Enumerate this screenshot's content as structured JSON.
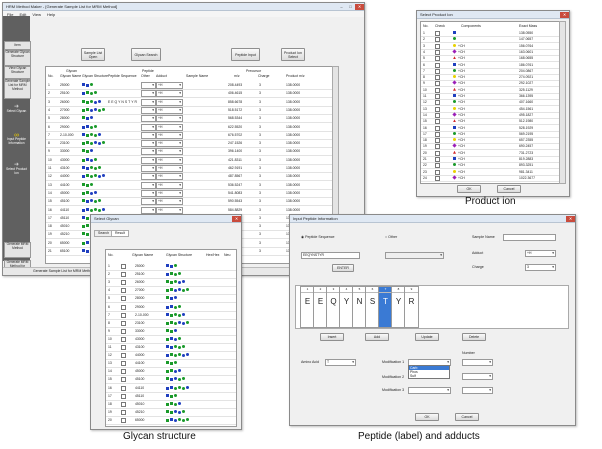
{
  "main_window": {
    "title": "HRM Method Maker - [Generate Sample List for MRM Method]",
    "menu": [
      "File",
      "Edit",
      "View",
      "Help"
    ],
    "sidebar": [
      {
        "label": "Item"
      },
      {
        "label": "Generate Glycan Structure"
      },
      {
        "label": "View Glycan Structure"
      },
      {
        "label": "Generate Sample List for MRM Method"
      },
      {
        "label": "Select Glycan"
      },
      {
        "label": "Input Peptide Information"
      },
      {
        "label": "Select Product Ion"
      },
      {
        "label": "Generate MRM Method"
      },
      {
        "label": "Generate MRM Method for Dresin"
      }
    ],
    "toolbar": [
      {
        "label": "Sample List Open"
      },
      {
        "label": "Glycan Search"
      },
      {
        "label": "Peptide Input"
      },
      {
        "label": "Product Ion Select"
      }
    ],
    "group_headers": {
      "glycan": "Glycan",
      "peptide": "Peptide",
      "precursor": "Precursor"
    },
    "columns": [
      "No.",
      "Glycan Name",
      "Glycan Structure",
      "Peptide Sequence",
      "Other",
      "Adduct",
      "Sample Name",
      "m/z",
      "Charge",
      "Product m/z"
    ],
    "rows": [
      {
        "no": "1",
        "glycan": "25000",
        "seq": "",
        "adduct": "+H",
        "mz": "208.4493",
        "charge": "3",
        "product": "138.0000"
      },
      {
        "no": "2",
        "glycan": "25100",
        "seq": "",
        "adduct": "+H",
        "mz": "406.4615",
        "charge": "3",
        "product": "138.0000"
      },
      {
        "no": "3",
        "glycan": "26000",
        "seq": "EEQYNSTYR",
        "adduct": "+H",
        "mz": "858.6678",
        "charge": "3",
        "product": "138.0000"
      },
      {
        "no": "4",
        "glycan": "27000",
        "seq": "",
        "adduct": "+H",
        "mz": "518.5172",
        "charge": "3",
        "product": "138.0000"
      },
      {
        "no": "5",
        "glycan": "28000",
        "seq": "",
        "adduct": "+H",
        "mz": "568.5344",
        "charge": "3",
        "product": "138.0000"
      },
      {
        "no": "6",
        "glycan": "29000",
        "seq": "",
        "adduct": "+H",
        "mz": "622.5520",
        "charge": "3",
        "product": "138.0000"
      },
      {
        "no": "7",
        "glycan": "2-10-000",
        "seq": "",
        "adduct": "+H",
        "mz": "676.5702",
        "charge": "3",
        "product": "138.0000"
      },
      {
        "no": "8",
        "glycan": "23100",
        "seq": "",
        "adduct": "+H",
        "mz": "247.1526",
        "charge": "3",
        "product": "138.0000"
      },
      {
        "no": "9",
        "glycan": "33000",
        "seq": "",
        "adduct": "+H",
        "mz": "396.1400",
        "charge": "3",
        "product": "138.0000"
      },
      {
        "no": "10",
        "glycan": "43000",
        "seq": "",
        "adduct": "+H",
        "mz": "421.8311",
        "charge": "3",
        "product": "138.0000"
      },
      {
        "no": "11",
        "glycan": "43100",
        "seq": "",
        "adduct": "+H",
        "mz": "462.9191",
        "charge": "3",
        "product": "138.0000"
      },
      {
        "no": "12",
        "glycan": "44000",
        "seq": "",
        "adduct": "+H",
        "mz": "487.8567",
        "charge": "3",
        "product": "138.0000"
      },
      {
        "no": "13",
        "glycan": "44100",
        "seq": "",
        "adduct": "+H",
        "mz": "536.5247",
        "charge": "3",
        "product": "138.0000"
      },
      {
        "no": "14",
        "glycan": "45000",
        "seq": "",
        "adduct": "+H",
        "mz": "541.8083",
        "charge": "3",
        "product": "138.0000"
      },
      {
        "no": "15",
        "glycan": "45100",
        "seq": "",
        "adduct": "+H",
        "mz": "590.5543",
        "charge": "3",
        "product": "138.0000"
      },
      {
        "no": "16",
        "glycan": "44110",
        "seq": "",
        "adduct": "+H",
        "mz": "584.8829",
        "charge": "3",
        "product": "138.0000"
      },
      {
        "no": "17",
        "glycan": "45110",
        "seq": "",
        "adduct": "+H",
        "mz": "632.9069",
        "charge": "3",
        "product": "138.0000"
      },
      {
        "no": "18",
        "glycan": "45010",
        "seq": "",
        "adduct": "+H",
        "mz": "638.6055",
        "charge": "3",
        "product": "138.0000"
      },
      {
        "no": "19",
        "glycan": "45210",
        "seq": "",
        "adduct": "+H",
        "mz": "687.3664",
        "charge": "3",
        "product": "138.0000"
      },
      {
        "no": "20",
        "glycan": "65000",
        "seq": "",
        "adduct": "+H",
        "mz": "735.4314",
        "charge": "3",
        "product": "138.0000"
      },
      {
        "no": "21",
        "glycan": "65100",
        "seq": "",
        "adduct": "+H",
        "mz": "784.6176",
        "charge": "3",
        "product": "138.0000"
      }
    ],
    "status": "Generate Sample List for MRM Method"
  },
  "product_window": {
    "title": "Select Product Ion",
    "columns": [
      "No.",
      "Check",
      "Components",
      "Exact Mass"
    ],
    "rows": [
      {
        "no": "1",
        "comp": "",
        "mass": "138.0550"
      },
      {
        "no": "2",
        "comp": "",
        "mass": "147.0657"
      },
      {
        "no": "3",
        "comp": "+CH",
        "mass": "156.0764"
      },
      {
        "no": "4",
        "comp": "+CH",
        "mass": "163.0601"
      },
      {
        "no": "5",
        "comp": "+CH",
        "mass": "168.0655"
      },
      {
        "no": "6",
        "comp": "+CH",
        "mass": "186.0761"
      },
      {
        "no": "7",
        "comp": "+CH",
        "mass": "204.0867"
      },
      {
        "no": "8",
        "comp": "+CH",
        "mass": "274.0921"
      },
      {
        "no": "9",
        "comp": "+CH",
        "mass": "292.1027"
      },
      {
        "no": "10",
        "comp": "+CH",
        "mass": "325.1129"
      },
      {
        "no": "11",
        "comp": "+CH",
        "mass": "366.1395"
      },
      {
        "no": "12",
        "comp": "+CH",
        "mass": "407.1660"
      },
      {
        "no": "13",
        "comp": "+CH",
        "mass": "454.1561"
      },
      {
        "no": "14",
        "comp": "+CH",
        "mass": "495.1827"
      },
      {
        "no": "15",
        "comp": "+CH",
        "mass": "512.1980"
      },
      {
        "no": "16",
        "comp": "+CH",
        "mass": "528.1929"
      },
      {
        "no": "17",
        "comp": "+CH",
        "mass": "569.2195"
      },
      {
        "no": "18",
        "comp": "+CH",
        "mass": "657.2355"
      },
      {
        "no": "19",
        "comp": "+CH",
        "mass": "690.2457"
      },
      {
        "no": "20",
        "comp": "+CH",
        "mass": "731.2723"
      },
      {
        "no": "21",
        "comp": "+CH",
        "mass": "819.2883"
      },
      {
        "no": "22",
        "comp": "+CH",
        "mass": "893.3251"
      },
      {
        "no": "23",
        "comp": "+CH",
        "mass": "981.3411"
      },
      {
        "no": "24",
        "comp": "+CH",
        "mass": "1022.3677"
      }
    ],
    "ok": "OK",
    "cancel": "Cancel"
  },
  "glycan_window": {
    "title": "Select Glycan",
    "tabs": [
      "Search",
      "Result"
    ],
    "columns": [
      "No.",
      "",
      "Glycan Name",
      "Glycan Structure",
      "Hex/Hex",
      "Neu"
    ],
    "rows": [
      {
        "no": "1",
        "name": "25000"
      },
      {
        "no": "2",
        "name": "25100"
      },
      {
        "no": "3",
        "name": "26000"
      },
      {
        "no": "4",
        "name": "27000"
      },
      {
        "no": "5",
        "name": "28000"
      },
      {
        "no": "6",
        "name": "29000"
      },
      {
        "no": "7",
        "name": "2-10-000"
      },
      {
        "no": "8",
        "name": "23100"
      },
      {
        "no": "9",
        "name": "33000"
      },
      {
        "no": "10",
        "name": "43000"
      },
      {
        "no": "11",
        "name": "43100"
      },
      {
        "no": "12",
        "name": "44000"
      },
      {
        "no": "13",
        "name": "44100"
      },
      {
        "no": "14",
        "name": "45000"
      },
      {
        "no": "15",
        "name": "45100"
      },
      {
        "no": "16",
        "name": "44110"
      },
      {
        "no": "17",
        "name": "45110"
      },
      {
        "no": "18",
        "name": "45010"
      },
      {
        "no": "19",
        "name": "45210"
      },
      {
        "no": "20",
        "name": "65000"
      }
    ]
  },
  "peptide_window": {
    "title": "Input Peptide Information",
    "radio_peptide": "Peptide Sequence",
    "radio_other": "Other",
    "sequence_value": "EEQYNSTYR",
    "enter": "ENTER",
    "sample_name_label": "Sample Name",
    "adduct_label": "Adduct",
    "adduct_value": "+H",
    "charge_label": "Charge",
    "charge_value": "3",
    "sequence": [
      {
        "n": "1",
        "aa": "E"
      },
      {
        "n": "2",
        "aa": "E"
      },
      {
        "n": "3",
        "aa": "Q"
      },
      {
        "n": "4",
        "aa": "Y"
      },
      {
        "n": "5",
        "aa": "N"
      },
      {
        "n": "6",
        "aa": "S"
      },
      {
        "n": "7",
        "aa": "T"
      },
      {
        "n": "8",
        "aa": "Y"
      },
      {
        "n": "9",
        "aa": "R"
      }
    ],
    "buttons": {
      "insert": "Insert",
      "add": "Add",
      "update": "Update",
      "delete": "Delete",
      "ok": "OK",
      "cancel": "Cancel"
    },
    "amino_acid_label": "Amino Acid",
    "amino_acid_value": "T",
    "mod1_label": "Modification 1",
    "mod2_label": "Modification 2",
    "mod3_label": "Modification 3",
    "number_label": "Number",
    "mod_options": [
      "Carb",
      "Phos",
      "Sulf"
    ]
  },
  "captions": {
    "product": "Product ion",
    "glycan": "Glycan structure",
    "peptide": "Peptide (label) and adducts"
  }
}
